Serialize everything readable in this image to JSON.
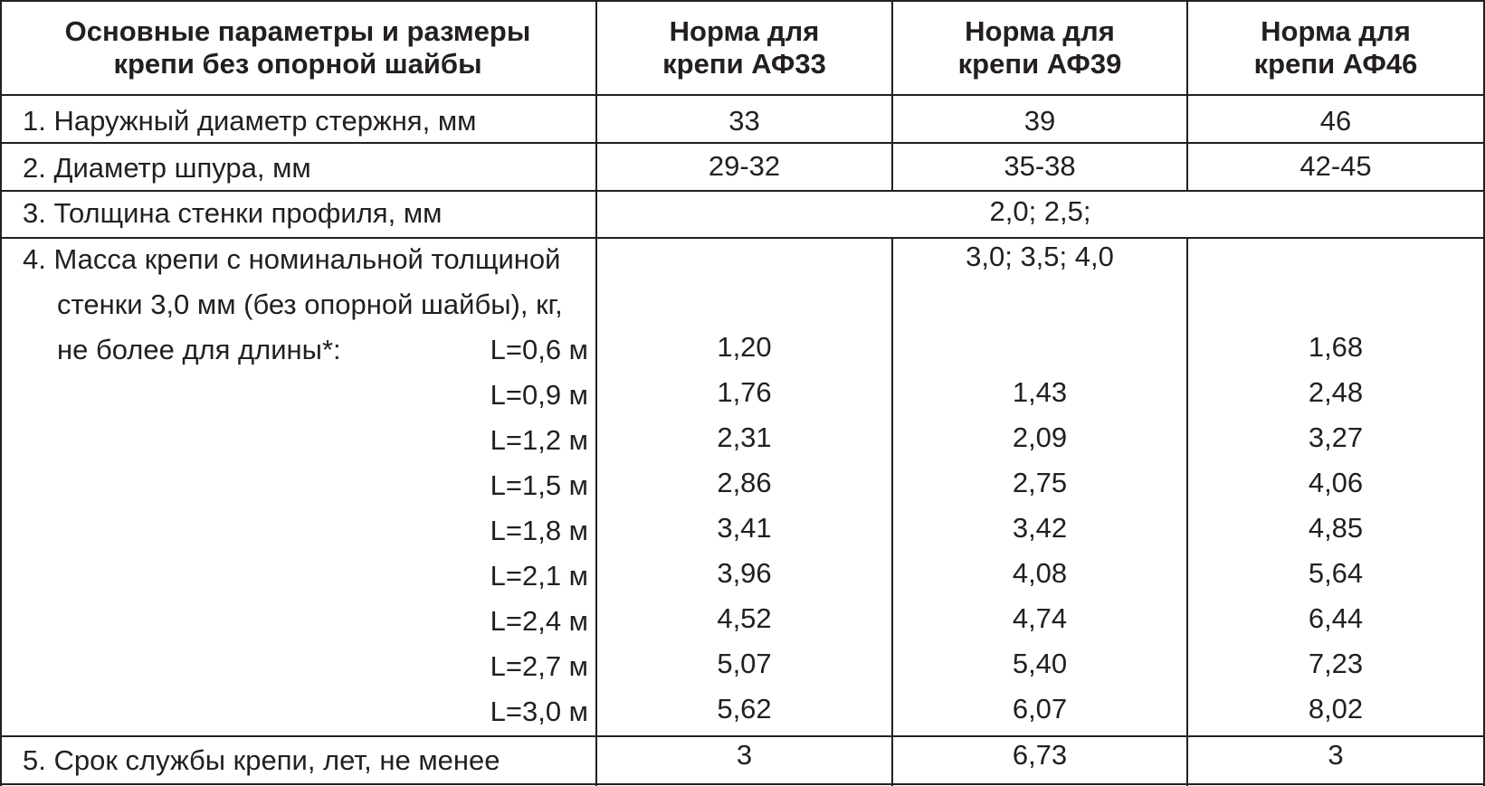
{
  "header": {
    "param_line1": "Основные параметры и размеры",
    "param_line2": "крепи без опорной шайбы",
    "af33_line1": "Норма для",
    "af33_line2": "крепи АФ33",
    "af39_line1": "Норма для",
    "af39_line2": "крепи АФ39",
    "af46_line1": "Норма для",
    "af46_line2": "крепи АФ46"
  },
  "row1": {
    "label": "1. Наружный диаметр стержня, мм",
    "af33": "33",
    "af39": "39",
    "af46": "46"
  },
  "row2": {
    "label": "2. Диаметр шпура, мм",
    "af33": "29-32",
    "af39": "35-38",
    "af46": "42-45"
  },
  "row3": {
    "label": "3. Толщина стенки профиля, мм",
    "value": "2,0; 2,5;",
    "value_cont": "3,0; 3,5; 4,0"
  },
  "row4": {
    "label_line1": "4. Масса крепи с номинальной толщиной",
    "label_line2": "стенки 3,0 мм (без опорной шайбы), кг,",
    "label_line3": "не более для длины*:",
    "lengths": [
      {
        "length": "L=0,6 м",
        "af33": "1,20",
        "af39": "",
        "af46": "1,68"
      },
      {
        "length": "L=0,9 м",
        "af33": "1,76",
        "af39": "1,43",
        "af46": "2,48"
      },
      {
        "length": "L=1,2 м",
        "af33": "2,31",
        "af39": "2,09",
        "af46": "3,27"
      },
      {
        "length": "L=1,5 м",
        "af33": "2,86",
        "af39": "2,75",
        "af46": "4,06"
      },
      {
        "length": "L=1,8 м",
        "af33": "3,41",
        "af39": "3,42",
        "af46": "4,85"
      },
      {
        "length": "L=2,1 м",
        "af33": "3,96",
        "af39": "4,08",
        "af46": "5,64"
      },
      {
        "length": "L=2,4 м",
        "af33": "4,52",
        "af39": "4,74",
        "af46": "6,44"
      },
      {
        "length": "L=2,7 м",
        "af33": "5,07",
        "af39": "5,40",
        "af46": "7,23"
      },
      {
        "length": "L=3,0 м",
        "af33": "5,62",
        "af39": "6,07",
        "af46": "8,02"
      }
    ]
  },
  "row5": {
    "label": "5. Срок службы крепи, лет, не менее",
    "af33": "3",
    "af39": "6,73",
    "af46": "3"
  }
}
